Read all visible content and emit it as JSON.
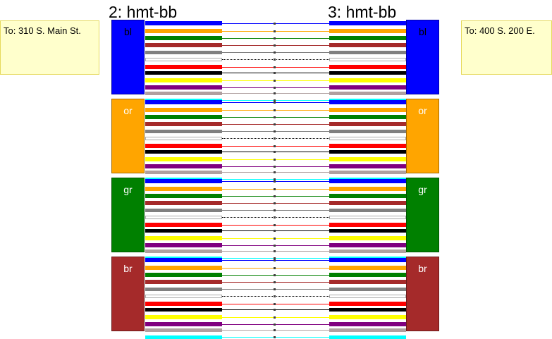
{
  "header": {
    "left_label": "2: hmt-bb",
    "right_label": "3: hmt-bb"
  },
  "addresses": {
    "left": "To: 310 S. Main St.",
    "right": "To: 400 S. 200 E."
  },
  "binder_groups": [
    {
      "id": "bl",
      "label": "bl",
      "color": "#0000ff",
      "label_color": "#000000"
    },
    {
      "id": "or",
      "label": "or",
      "color": "#ffa500",
      "label_color": "#ffffff"
    },
    {
      "id": "gr",
      "label": "gr",
      "color": "#008000",
      "label_color": "#ffffff"
    },
    {
      "id": "br",
      "label": "br",
      "color": "#a52a2a",
      "label_color": "#ffffff"
    }
  ],
  "pair_colors": [
    {
      "name": "blue",
      "color": "#0000ff"
    },
    {
      "name": "orange",
      "color": "#ffa500"
    },
    {
      "name": "green",
      "color": "#008000"
    },
    {
      "name": "brown",
      "color": "#a52a2a"
    },
    {
      "name": "slate",
      "color": "#808080"
    },
    {
      "name": "white",
      "color": "#ffffff"
    },
    {
      "name": "red",
      "color": "#ff0000"
    },
    {
      "name": "black",
      "color": "#000000"
    },
    {
      "name": "yellow",
      "color": "#ffff00"
    },
    {
      "name": "violet",
      "color": "#800080"
    },
    {
      "name": "rose",
      "color": "#b0a0a0"
    },
    {
      "name": "aqua",
      "color": "#00ffff"
    }
  ]
}
